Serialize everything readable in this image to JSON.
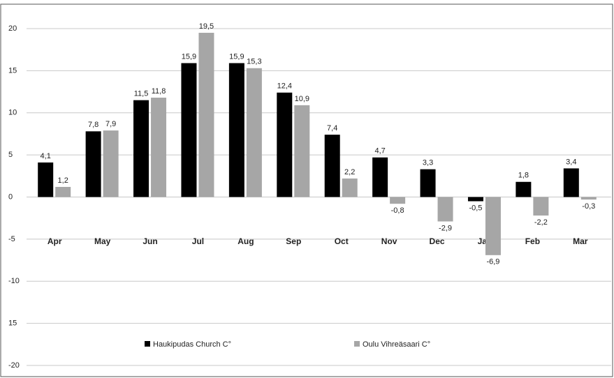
{
  "chart_data": {
    "type": "bar",
    "categories": [
      "Apr",
      "May",
      "Jun",
      "Jul",
      "Aug",
      "Sep",
      "Oct",
      "Nov",
      "Dec",
      "Jan",
      "Feb",
      "Mar"
    ],
    "series": [
      {
        "name": "Haukipudas Church C°",
        "color": "#000000",
        "values": [
          4.1,
          7.8,
          11.5,
          15.9,
          15.9,
          12.4,
          7.4,
          4.7,
          3.3,
          -0.5,
          1.8,
          3.4
        ],
        "value_labels": [
          "4,1",
          "7,8",
          "11,5",
          "15,9",
          "15,9",
          "12,4",
          "7,4",
          "4,7",
          "3,3",
          "-0,5",
          "1,8",
          "3,4"
        ]
      },
      {
        "name": "Oulu Vihreäsaari C°",
        "color": "#a6a6a6",
        "values": [
          1.2,
          7.9,
          11.8,
          19.5,
          15.3,
          10.9,
          2.2,
          -0.8,
          -2.9,
          -6.9,
          -2.2,
          -0.3
        ],
        "value_labels": [
          "1,2",
          "7,9",
          "11,8",
          "19,5",
          "15,3",
          "10,9",
          "2,2",
          "-0,8",
          "-2,9",
          "-6,9",
          "-2,2",
          "-0,3"
        ]
      }
    ],
    "ylim": [
      -20,
      20
    ],
    "yticks": [
      20,
      15,
      10,
      5,
      0,
      -5,
      -10,
      {
        "value": -15,
        "label": "15"
      },
      -20
    ],
    "grid": true,
    "legend": "bottom"
  }
}
